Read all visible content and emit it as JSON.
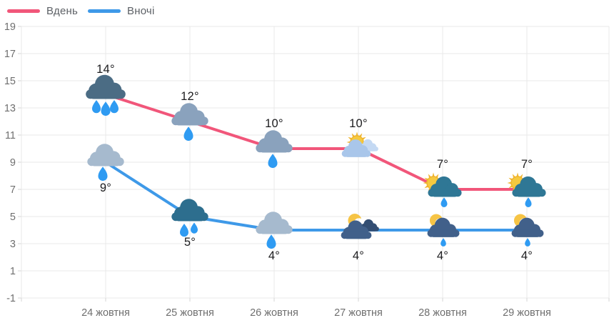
{
  "chart_data": {
    "type": "line",
    "categories": [
      "24 жовтня",
      "25 жовтня",
      "26 жовтня",
      "27 жовтня",
      "28 жовтня",
      "29 жовтня"
    ],
    "unit": "°",
    "yticks": [
      19,
      17,
      15,
      13,
      11,
      9,
      7,
      5,
      3,
      1,
      -1
    ],
    "ylim": [
      -1,
      19
    ],
    "grid": true,
    "legend_position": "top-left",
    "series": [
      {
        "name": "Вдень",
        "color": "#f1567a",
        "values": [
          14,
          12,
          10,
          10,
          7,
          7
        ],
        "labels": [
          "14°",
          "12°",
          "10°",
          "10°",
          "7°",
          "7°"
        ],
        "label_position": "above",
        "icons": [
          "cloud-heavy-rain-dark",
          "cloud-rain-medium",
          "cloud-rain-medium",
          "sun-behind-cloud",
          "sun-cloud-rain-teal",
          "sun-cloud-rain-teal"
        ]
      },
      {
        "name": "Вночі",
        "color": "#3e99e8",
        "values": [
          9,
          5,
          4,
          4,
          4,
          4
        ],
        "labels": [
          "9°",
          "5°",
          "4°",
          "4°",
          "4°",
          "4°"
        ],
        "label_position": "below",
        "icons": [
          "cloud-rain-light",
          "cloud-heavy-rain-teal",
          "cloud-rain-light",
          "moon-behind-clouds",
          "moon-cloud-rain",
          "moon-cloud-rain"
        ]
      }
    ]
  },
  "colors": {
    "grid": "#e8e8e8",
    "axis": "#d6d6d6",
    "tick_text": "#6f6f6f",
    "value_text": "#1c1c1e",
    "cloud_dark": "#4b6c84",
    "cloud_medium": "#8aa2bd",
    "cloud_light": "#a6bace",
    "cloud_teal_dark": "#2d6e8e",
    "cloud_teal": "#2f7795",
    "cloud_sky": "#a9c6ea",
    "cloud_sky_light": "#c4d9f3",
    "cloud_night": "#41608a",
    "cloud_night_dark": "#334e73",
    "moon": "#f6c445",
    "sun_rays": "#f0b52f",
    "sun_core": "#f5c93f",
    "drop": "#2f9bf2"
  }
}
